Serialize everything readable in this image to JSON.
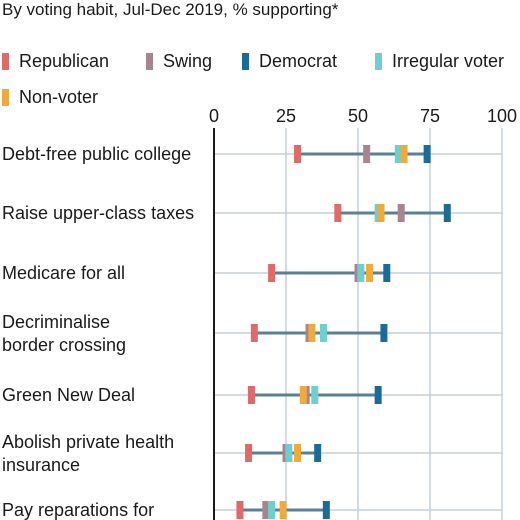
{
  "subtitle": "By voting habit, Jul-Dec 2019, % supporting*",
  "legend": [
    {
      "label": "Republican",
      "color": "#e06a6a"
    },
    {
      "label": "Swing",
      "color": "#a8858e"
    },
    {
      "label": "Democrat",
      "color": "#1a6a9a"
    },
    {
      "label": "Irregular voter",
      "color": "#6dd0cf"
    },
    {
      "label": "Non-voter",
      "color": "#f0aa3c"
    }
  ],
  "chart_data": {
    "type": "dot-range",
    "subtitle": "By voting habit, Jul-Dec 2019, % supporting*",
    "x_ticks": [
      0,
      25,
      50,
      75,
      100
    ],
    "xlim": [
      0,
      100
    ],
    "grid": true,
    "legend_position": "top",
    "categories": [
      [
        "Debt-free public college"
      ],
      [
        "Raise upper-class taxes"
      ],
      [
        "Medicare for all"
      ],
      [
        "Decriminalise",
        "border crossing"
      ],
      [
        "Green New Deal"
      ],
      [
        "Abolish private health",
        "insurance"
      ],
      [
        "Pay reparations for"
      ]
    ],
    "series": [
      {
        "name": "Republican",
        "color": "#e06a6a",
        "values": [
          29,
          43,
          20,
          14,
          13,
          12,
          9
        ]
      },
      {
        "name": "Swing",
        "color": "#a8858e",
        "values": [
          53,
          65,
          50,
          33,
          32,
          25,
          18
        ]
      },
      {
        "name": "Democrat",
        "color": "#1a6a9a",
        "values": [
          74,
          81,
          60,
          59,
          57,
          36,
          39
        ]
      },
      {
        "name": "Irregular voter",
        "color": "#6dd0cf",
        "values": [
          64,
          57,
          51,
          38,
          35,
          26,
          20
        ]
      },
      {
        "name": "Non-voter",
        "color": "#f0aa3c",
        "values": [
          66,
          58,
          54,
          34,
          31,
          29,
          24
        ]
      }
    ]
  }
}
